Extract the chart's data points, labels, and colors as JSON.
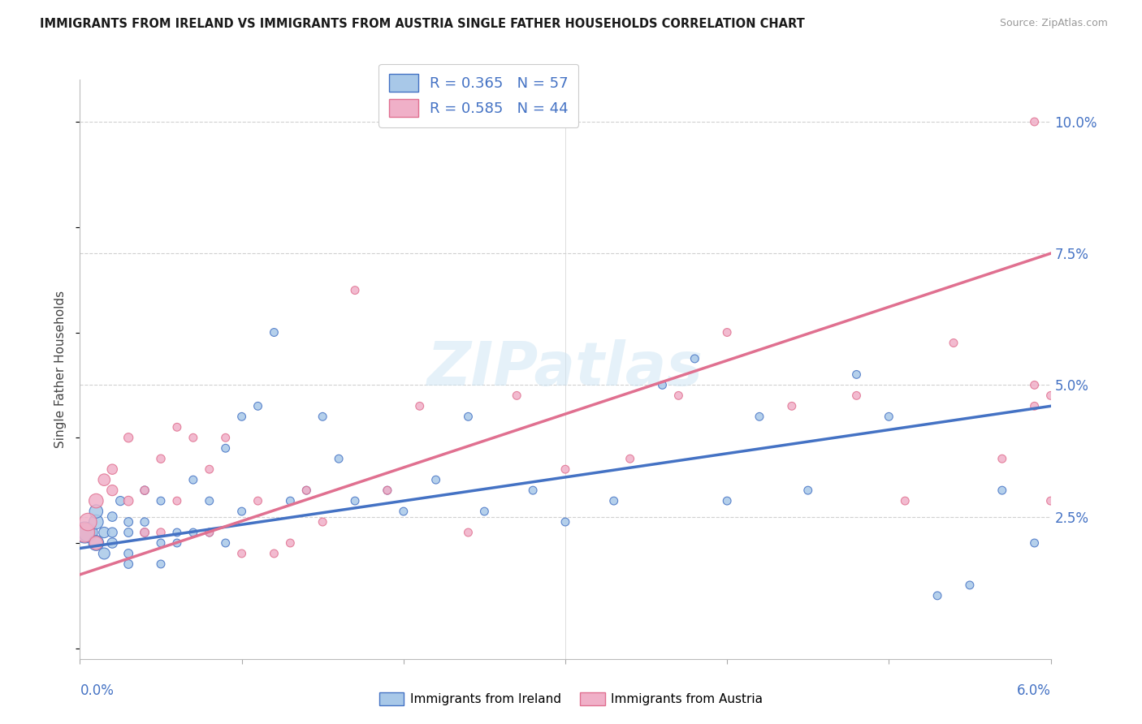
{
  "title": "IMMIGRANTS FROM IRELAND VS IMMIGRANTS FROM AUSTRIA SINGLE FATHER HOUSEHOLDS CORRELATION CHART",
  "source": "Source: ZipAtlas.com",
  "ylabel": "Single Father Households",
  "ireland_R": "0.365",
  "ireland_N": "57",
  "austria_R": "0.585",
  "austria_N": "44",
  "ireland_color": "#a8c8e8",
  "austria_color": "#f0b0c8",
  "ireland_line_color": "#4472c4",
  "austria_line_color": "#e07090",
  "legend_label_ireland": "Immigrants from Ireland",
  "legend_label_austria": "Immigrants from Austria",
  "xmin": 0.0,
  "xmax": 0.06,
  "ymin": -0.002,
  "ymax": 0.108,
  "yticks": [
    0.025,
    0.05,
    0.075,
    0.1
  ],
  "ytick_labels": [
    "2.5%",
    "5.0%",
    "7.5%",
    "10.0%"
  ],
  "ireland_x": [
    0.0003,
    0.0005,
    0.001,
    0.001,
    0.001,
    0.0015,
    0.0015,
    0.002,
    0.002,
    0.002,
    0.0025,
    0.003,
    0.003,
    0.003,
    0.003,
    0.004,
    0.004,
    0.004,
    0.005,
    0.005,
    0.005,
    0.006,
    0.006,
    0.007,
    0.007,
    0.008,
    0.008,
    0.009,
    0.009,
    0.01,
    0.01,
    0.011,
    0.012,
    0.013,
    0.014,
    0.015,
    0.016,
    0.017,
    0.019,
    0.02,
    0.022,
    0.024,
    0.025,
    0.028,
    0.03,
    0.033,
    0.036,
    0.038,
    0.04,
    0.042,
    0.045,
    0.048,
    0.05,
    0.053,
    0.055,
    0.057,
    0.059
  ],
  "ireland_y": [
    0.022,
    0.022,
    0.02,
    0.024,
    0.026,
    0.018,
    0.022,
    0.02,
    0.022,
    0.025,
    0.028,
    0.016,
    0.018,
    0.022,
    0.024,
    0.022,
    0.024,
    0.03,
    0.016,
    0.02,
    0.028,
    0.02,
    0.022,
    0.022,
    0.032,
    0.022,
    0.028,
    0.02,
    0.038,
    0.026,
    0.044,
    0.046,
    0.06,
    0.028,
    0.03,
    0.044,
    0.036,
    0.028,
    0.03,
    0.026,
    0.032,
    0.044,
    0.026,
    0.03,
    0.024,
    0.028,
    0.05,
    0.055,
    0.028,
    0.044,
    0.03,
    0.052,
    0.044,
    0.01,
    0.012,
    0.03,
    0.02
  ],
  "ireland_sizes": [
    350,
    280,
    180,
    160,
    140,
    100,
    90,
    80,
    75,
    70,
    65,
    60,
    60,
    60,
    60,
    55,
    55,
    55,
    50,
    50,
    50,
    50,
    50,
    50,
    50,
    50,
    50,
    50,
    50,
    50,
    50,
    50,
    50,
    50,
    50,
    50,
    50,
    50,
    50,
    50,
    50,
    50,
    50,
    50,
    50,
    50,
    50,
    50,
    50,
    50,
    50,
    50,
    50,
    50,
    50,
    50,
    50
  ],
  "austria_x": [
    0.0003,
    0.0005,
    0.001,
    0.001,
    0.0015,
    0.002,
    0.002,
    0.003,
    0.003,
    0.004,
    0.004,
    0.005,
    0.005,
    0.006,
    0.006,
    0.007,
    0.008,
    0.008,
    0.009,
    0.01,
    0.011,
    0.012,
    0.013,
    0.014,
    0.015,
    0.017,
    0.019,
    0.021,
    0.024,
    0.027,
    0.03,
    0.034,
    0.037,
    0.04,
    0.044,
    0.048,
    0.051,
    0.054,
    0.057,
    0.059,
    0.059,
    0.059,
    0.06,
    0.06
  ],
  "austria_y": [
    0.022,
    0.024,
    0.028,
    0.02,
    0.032,
    0.03,
    0.034,
    0.028,
    0.04,
    0.022,
    0.03,
    0.022,
    0.036,
    0.028,
    0.042,
    0.04,
    0.022,
    0.034,
    0.04,
    0.018,
    0.028,
    0.018,
    0.02,
    0.03,
    0.024,
    0.068,
    0.03,
    0.046,
    0.022,
    0.048,
    0.034,
    0.036,
    0.048,
    0.06,
    0.046,
    0.048,
    0.028,
    0.058,
    0.036,
    0.046,
    0.05,
    0.1,
    0.048,
    0.028
  ],
  "austria_sizes": [
    300,
    240,
    160,
    140,
    110,
    90,
    80,
    70,
    65,
    60,
    55,
    55,
    55,
    50,
    50,
    50,
    50,
    50,
    50,
    50,
    50,
    50,
    50,
    50,
    50,
    50,
    50,
    50,
    50,
    50,
    50,
    50,
    50,
    50,
    50,
    50,
    50,
    50,
    50,
    50,
    50,
    50,
    50,
    50
  ],
  "ireland_trend": [
    0.019,
    0.046
  ],
  "austria_trend": [
    0.014,
    0.075
  ]
}
